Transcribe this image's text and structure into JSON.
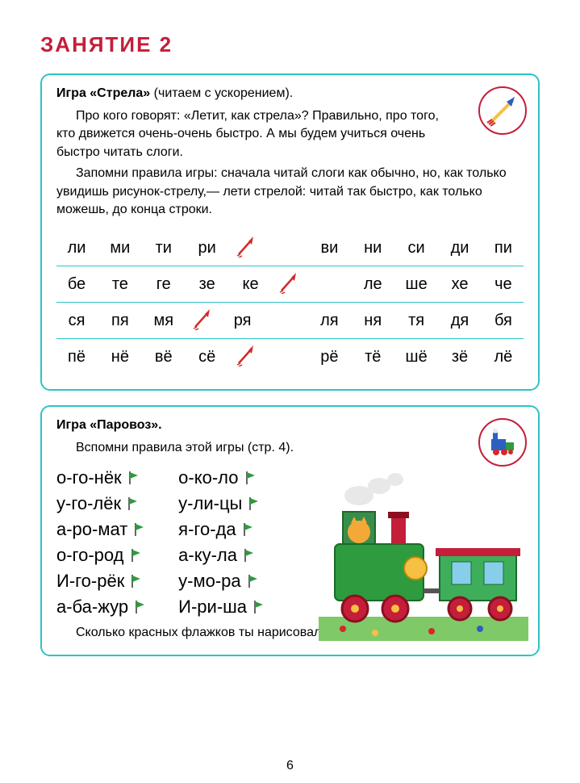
{
  "lesson_title": "ЗАНЯТИЕ 2",
  "page_number": "6",
  "colors": {
    "accent_red": "#c41e3a",
    "border_teal": "#2ec4c4",
    "flag_green": "#2e9b3e",
    "arrow_red": "#d62828",
    "arrow_blue": "#2b5fc4",
    "arrow_yellow": "#f6c043"
  },
  "game1": {
    "title": "Игра «Стрела»",
    "subtitle": " (читаем с ускорением).",
    "para1": "Про кого говорят: «Летит, как стрела»? Правильно, про того, кто движется очень-очень быстро. А мы будем учиться очень быстро читать слоги.",
    "para2": "Запомни правила игры: сначала читай слоги как обычно, но, как только увидишь рисунок-стрелу,— лети стрелой: читай так быстро, как только можешь, до конца строки.",
    "rows": [
      {
        "cells": [
          "ли",
          "ми",
          "ти",
          "ри",
          "ARROW",
          "",
          "ви",
          "ни",
          "си",
          "ди",
          "пи"
        ]
      },
      {
        "cells": [
          "бе",
          "те",
          "ге",
          "зе",
          "ке",
          "ARROW",
          "",
          "ле",
          "ше",
          "хе",
          "че"
        ]
      },
      {
        "cells": [
          "ся",
          "пя",
          "мя",
          "ARROW",
          "ря",
          "",
          "ля",
          "ня",
          "тя",
          "дя",
          "бя"
        ]
      },
      {
        "cells": [
          "пё",
          "нё",
          "вё",
          "сё",
          "ARROW",
          "",
          "рё",
          "тё",
          "шё",
          "зё",
          "лё"
        ]
      }
    ]
  },
  "game2": {
    "title": "Игра «Паровоз».",
    "subtitle_line": "Вспомни правила этой игры (стр. 4).",
    "col1": [
      "о-го-нёк",
      "у-го-лёк",
      "а-ро-мат",
      "о-го-род",
      "И-го-рёк",
      "а-ба-жур"
    ],
    "col2": [
      "о-ко-ло",
      "у-ли-цы",
      "я-го-да",
      "а-ку-ла",
      "у-мо-ра",
      "И-ри-ша"
    ],
    "footer": "Сколько красных флажков ты нарисовал? Сосчитай свои ошибки."
  }
}
